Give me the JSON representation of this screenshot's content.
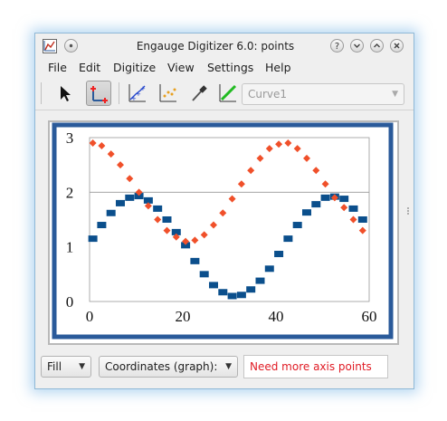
{
  "window": {
    "title": "Engauge Digitizer 6.0: points",
    "buttons": {
      "help": "?",
      "min": "⌄",
      "max": "⌃",
      "close": "✕"
    }
  },
  "menu": [
    "File",
    "Edit",
    "Digitize",
    "View",
    "Settings",
    "Help"
  ],
  "toolbar": {
    "icons": [
      "select-arrow-icon",
      "axis-point-icon",
      "curve-point-icon",
      "point-match-icon",
      "color-picker-icon",
      "segment-fill-icon"
    ],
    "curve_select": "Curve1"
  },
  "colors": {
    "curve1": "#0b4f8c",
    "curve2": "#f0502a",
    "frame": "#2a5a9a",
    "status_error": "#e01b24"
  },
  "chart_data": {
    "type": "scatter",
    "xlim": [
      0,
      60
    ],
    "ylim": [
      0,
      3
    ],
    "x_ticks": [
      "0",
      "20",
      "40",
      "60"
    ],
    "y_ticks": [
      "0",
      "1",
      "2",
      "3"
    ],
    "horizontal_line": 2,
    "series": [
      {
        "marker": "square",
        "x": [
          0.7,
          2.6,
          4.6,
          6.6,
          8.6,
          10.6,
          12.6,
          14.6,
          16.6,
          18.6,
          20.6,
          22.6,
          24.6,
          26.6,
          28.6,
          30.6,
          32.6,
          34.6,
          36.6,
          38.6,
          40.6,
          42.6,
          44.6,
          46.6,
          48.6,
          50.6,
          52.6,
          54.6,
          56.6,
          58.6
        ],
        "y": [
          1.15,
          1.4,
          1.62,
          1.8,
          1.9,
          1.93,
          1.85,
          1.7,
          1.5,
          1.27,
          1.03,
          0.74,
          0.5,
          0.3,
          0.17,
          0.1,
          0.12,
          0.22,
          0.38,
          0.6,
          0.87,
          1.15,
          1.4,
          1.63,
          1.78,
          1.9,
          1.92,
          1.88,
          1.7,
          1.5
        ]
      },
      {
        "marker": "diamond",
        "x": [
          0.7,
          2.6,
          4.6,
          6.6,
          8.6,
          10.6,
          12.6,
          14.6,
          16.6,
          18.6,
          20.6,
          22.6,
          24.6,
          26.6,
          28.6,
          30.6,
          32.6,
          34.6,
          36.6,
          38.6,
          40.6,
          42.6,
          44.6,
          46.6,
          48.6,
          50.6,
          52.6,
          54.6,
          56.6,
          58.6
        ],
        "y": [
          2.9,
          2.85,
          2.7,
          2.5,
          2.25,
          2.0,
          1.75,
          1.5,
          1.3,
          1.18,
          1.1,
          1.12,
          1.22,
          1.4,
          1.62,
          1.88,
          2.15,
          2.4,
          2.62,
          2.8,
          2.88,
          2.9,
          2.8,
          2.62,
          2.4,
          2.15,
          1.9,
          1.72,
          1.5,
          1.3
        ]
      }
    ]
  },
  "status": {
    "fill_mode": "Fill",
    "coords_mode": "Coordinates (graph):",
    "message": "Need more axis points"
  }
}
